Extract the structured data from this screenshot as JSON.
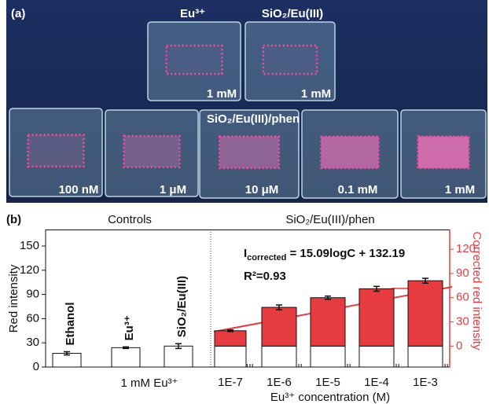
{
  "panel_a": {
    "label": "(a)",
    "top": [
      {
        "name": "Eu³⁺",
        "conc": "1 mM"
      },
      {
        "name": "SiO₂/Eu(III)",
        "conc": "1 mM"
      }
    ],
    "bottom_title": "SiO₂/Eu(III)/phen",
    "bottom": [
      "100 nM",
      "1 μM",
      "10 μM",
      "0.1 mM",
      "1 mM"
    ]
  },
  "chart_data": {
    "type": "bar",
    "label": "(b)",
    "group_labels": [
      "Controls",
      "SiO₂/Eu(III)/phen"
    ],
    "categories": [
      null,
      null,
      null,
      "1E-7",
      "1E-6",
      "1E-5",
      "1E-4",
      "1E-3"
    ],
    "bar_labels": [
      "Ethanol",
      "Eu³⁺",
      "SiO₂/Eu(III)",
      null,
      null,
      null,
      null,
      null
    ],
    "group_tick_label": "1 mM Eu³⁺",
    "xlabel": "Eu³⁺ concentration (M)",
    "ylabel": "Red intensity",
    "y2label": "Corrected red intensity",
    "series": [
      {
        "color": "#ffffff",
        "values": [
          17,
          24,
          26,
          26,
          26,
          26,
          26,
          26
        ],
        "errors": [
          2,
          1,
          3,
          null,
          null,
          null,
          null,
          null
        ]
      },
      {
        "color": "#e63b3f",
        "axis": "y2",
        "values": [
          null,
          null,
          null,
          19,
          48,
          60,
          71,
          81
        ],
        "errors": [
          null,
          null,
          null,
          1,
          3,
          2,
          3,
          3
        ]
      }
    ],
    "ylim": [
      0,
      170
    ],
    "yticks": [
      0,
      30,
      60,
      90,
      120,
      150
    ],
    "y2lim": [
      -26,
      144
    ],
    "y2ticks": [
      0,
      30,
      60,
      90,
      120
    ],
    "y2color": "#e63b3f",
    "equation": {
      "main": "I",
      "sub": "corrected",
      "rest": " = 15.09logC + 132.19"
    },
    "r2": "R²=0.93"
  }
}
